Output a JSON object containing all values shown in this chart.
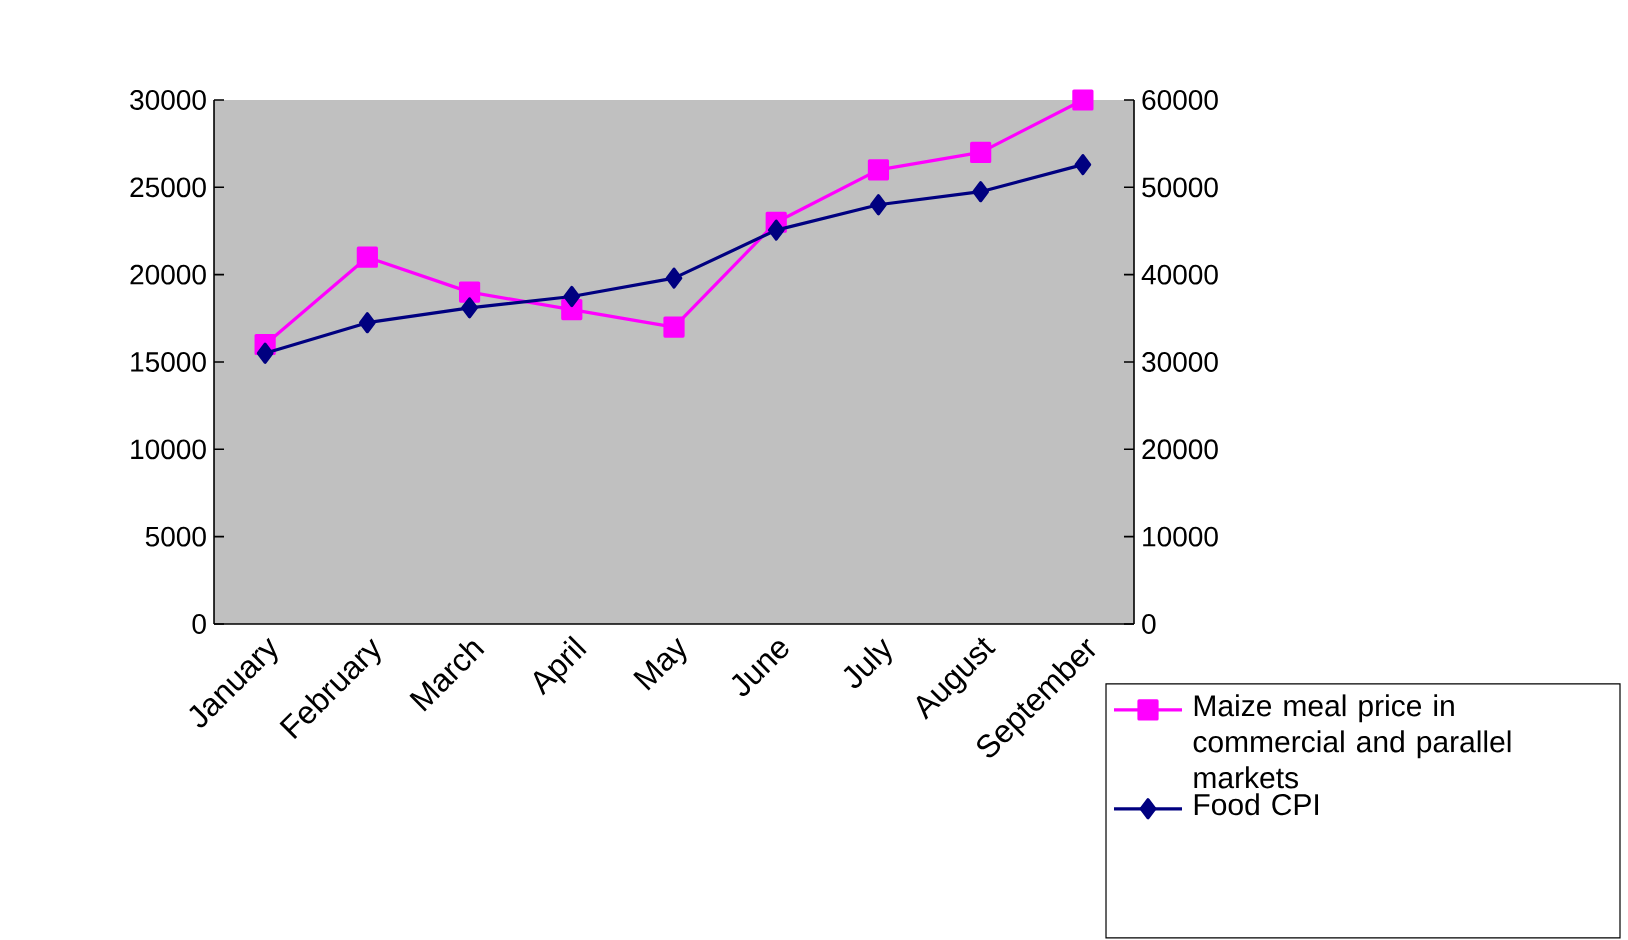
{
  "chart_data": {
    "type": "line",
    "categories": [
      "January",
      "February",
      "March",
      "April",
      "May",
      "June",
      "July",
      "August",
      "September"
    ],
    "series": [
      {
        "name": "Maize meal price in commercial and parallel markets",
        "color": "#ff00ff",
        "marker": "square",
        "values": [
          16000,
          21000,
          19000,
          18000,
          17000,
          23000,
          26000,
          27000,
          30000
        ]
      },
      {
        "name": "Food CPI",
        "color": "#000080",
        "marker": "diamond",
        "axis": "y2",
        "values": [
          31000,
          34500,
          36200,
          37500,
          39600,
          45100,
          48000,
          49500,
          52600
        ]
      }
    ],
    "ylim": [
      0,
      30000
    ],
    "yticks": [
      0,
      5000,
      10000,
      15000,
      20000,
      25000,
      30000
    ],
    "y2lim": [
      0,
      60000
    ],
    "y2ticks": [
      0,
      10000,
      20000,
      30000,
      40000,
      50000,
      60000
    ],
    "legend": "bottom right"
  }
}
